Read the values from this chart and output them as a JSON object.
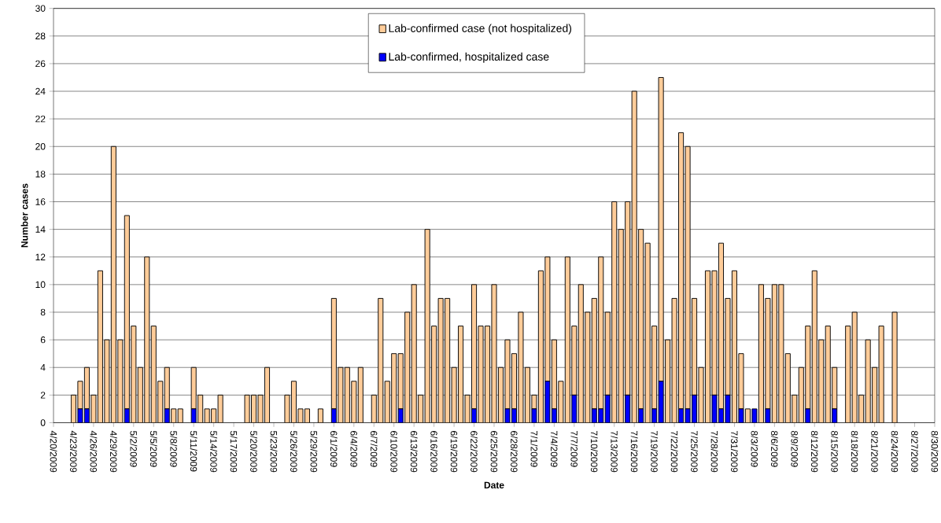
{
  "chart_data": {
    "type": "bar",
    "stacked": true,
    "xlabel": "Date",
    "ylabel": "Number cases",
    "x": [
      "2009-04-23",
      "2009-04-24",
      "2009-04-25",
      "2009-04-26",
      "2009-04-27",
      "2009-04-28",
      "2009-04-29",
      "2009-04-30",
      "2009-05-01",
      "2009-05-02",
      "2009-05-03",
      "2009-05-04",
      "2009-05-05",
      "2009-05-06",
      "2009-05-07",
      "2009-05-08",
      "2009-05-09",
      "2009-05-11",
      "2009-05-12",
      "2009-05-13",
      "2009-05-14",
      "2009-05-15",
      "2009-05-19",
      "2009-05-20",
      "2009-05-21",
      "2009-05-22",
      "2009-05-25",
      "2009-05-26",
      "2009-05-27",
      "2009-05-28",
      "2009-05-30",
      "2009-06-01",
      "2009-06-02",
      "2009-06-03",
      "2009-06-04",
      "2009-06-05",
      "2009-06-07",
      "2009-06-08",
      "2009-06-09",
      "2009-06-10",
      "2009-06-11",
      "2009-06-12",
      "2009-06-13",
      "2009-06-14",
      "2009-06-15",
      "2009-06-16",
      "2009-06-17",
      "2009-06-18",
      "2009-06-19",
      "2009-06-20",
      "2009-06-21",
      "2009-06-22",
      "2009-06-23",
      "2009-06-24",
      "2009-06-25",
      "2009-06-26",
      "2009-06-27",
      "2009-06-28",
      "2009-06-29",
      "2009-06-30",
      "2009-07-01",
      "2009-07-02",
      "2009-07-03",
      "2009-07-04",
      "2009-07-05",
      "2009-07-06",
      "2009-07-07",
      "2009-07-08",
      "2009-07-09",
      "2009-07-10",
      "2009-07-11",
      "2009-07-12",
      "2009-07-13",
      "2009-07-14",
      "2009-07-15",
      "2009-07-16",
      "2009-07-17",
      "2009-07-18",
      "2009-07-19",
      "2009-07-20",
      "2009-07-21",
      "2009-07-22",
      "2009-07-23",
      "2009-07-24",
      "2009-07-25",
      "2009-07-26",
      "2009-07-27",
      "2009-07-28",
      "2009-07-29",
      "2009-07-30",
      "2009-07-31",
      "2009-08-01",
      "2009-08-02",
      "2009-08-03",
      "2009-08-04",
      "2009-08-05",
      "2009-08-06",
      "2009-08-07",
      "2009-08-08",
      "2009-08-09",
      "2009-08-10",
      "2009-08-11",
      "2009-08-12",
      "2009-08-13",
      "2009-08-14",
      "2009-08-15",
      "2009-08-17",
      "2009-08-18",
      "2009-08-19",
      "2009-08-20",
      "2009-08-21",
      "2009-08-22",
      "2009-08-24"
    ],
    "series": [
      {
        "name": "Lab-confirmed, hospitalized case",
        "color": "#0000ff",
        "values": [
          0,
          1,
          1,
          0,
          0,
          0,
          0,
          0,
          1,
          0,
          0,
          0,
          0,
          0,
          1,
          0,
          0,
          1,
          0,
          0,
          0,
          0,
          0,
          0,
          0,
          0,
          0,
          0,
          0,
          0,
          0,
          1,
          0,
          0,
          0,
          0,
          0,
          0,
          0,
          0,
          1,
          0,
          0,
          0,
          0,
          0,
          0,
          0,
          0,
          0,
          0,
          1,
          0,
          0,
          0,
          0,
          1,
          1,
          0,
          0,
          1,
          0,
          3,
          1,
          0,
          0,
          2,
          0,
          0,
          1,
          1,
          2,
          0,
          0,
          2,
          0,
          1,
          0,
          1,
          3,
          0,
          0,
          1,
          1,
          2,
          0,
          0,
          2,
          1,
          2,
          0,
          1,
          0,
          1,
          0,
          1,
          0,
          0,
          0,
          0,
          0,
          1,
          0,
          0,
          0,
          1,
          0,
          0,
          0,
          0,
          0,
          0,
          0
        ]
      },
      {
        "name": "Lab-confirmed case (not hospitalized)",
        "color": "#ffcc99",
        "values": [
          2,
          2,
          3,
          2,
          11,
          6,
          20,
          6,
          14,
          7,
          4,
          12,
          7,
          3,
          3,
          1,
          1,
          3,
          2,
          1,
          1,
          2,
          2,
          2,
          2,
          4,
          2,
          3,
          1,
          1,
          1,
          8,
          4,
          4,
          3,
          4,
          2,
          9,
          3,
          5,
          4,
          8,
          10,
          2,
          14,
          7,
          9,
          9,
          4,
          7,
          2,
          9,
          7,
          7,
          10,
          4,
          5,
          4,
          8,
          4,
          1,
          11,
          9,
          5,
          3,
          12,
          5,
          10,
          8,
          8,
          11,
          6,
          16,
          14,
          14,
          24,
          13,
          13,
          6,
          22,
          6,
          9,
          20,
          19,
          7,
          4,
          11,
          9,
          12,
          7,
          11,
          4,
          1,
          0,
          10,
          8,
          10,
          10,
          5,
          2,
          4,
          6,
          11,
          6,
          7,
          3,
          7,
          8,
          2,
          6,
          4,
          7,
          8
        ]
      }
    ],
    "xlim": [
      "2009-04-20",
      "2009-08-30"
    ],
    "xticks": [
      {
        "value": "2009-04-20",
        "label": "4/20/2009"
      },
      {
        "value": "2009-04-23",
        "label": "4/23/2009"
      },
      {
        "value": "2009-04-26",
        "label": "4/26/2009"
      },
      {
        "value": "2009-04-29",
        "label": "4/29/2009"
      },
      {
        "value": "2009-05-02",
        "label": "5/2/2009"
      },
      {
        "value": "2009-05-05",
        "label": "5/5/2009"
      },
      {
        "value": "2009-05-08",
        "label": "5/8/2009"
      },
      {
        "value": "2009-05-11",
        "label": "5/11/2009"
      },
      {
        "value": "2009-05-14",
        "label": "5/14/2009"
      },
      {
        "value": "2009-05-17",
        "label": "5/17/2009"
      },
      {
        "value": "2009-05-20",
        "label": "5/20/2009"
      },
      {
        "value": "2009-05-23",
        "label": "5/23/2009"
      },
      {
        "value": "2009-05-26",
        "label": "5/26/2009"
      },
      {
        "value": "2009-05-29",
        "label": "5/29/2009"
      },
      {
        "value": "2009-06-01",
        "label": "6/1/2009"
      },
      {
        "value": "2009-06-04",
        "label": "6/4/2009"
      },
      {
        "value": "2009-06-07",
        "label": "6/7/2009"
      },
      {
        "value": "2009-06-10",
        "label": "6/10/2009"
      },
      {
        "value": "2009-06-13",
        "label": "6/13/2009"
      },
      {
        "value": "2009-06-16",
        "label": "6/16/2009"
      },
      {
        "value": "2009-06-19",
        "label": "6/19/2009"
      },
      {
        "value": "2009-06-22",
        "label": "6/22/2009"
      },
      {
        "value": "2009-06-25",
        "label": "6/25/2009"
      },
      {
        "value": "2009-06-28",
        "label": "6/28/2009"
      },
      {
        "value": "2009-07-01",
        "label": "7/1/2009"
      },
      {
        "value": "2009-07-04",
        "label": "7/4/2009"
      },
      {
        "value": "2009-07-07",
        "label": "7/7/2009"
      },
      {
        "value": "2009-07-10",
        "label": "7/10/2009"
      },
      {
        "value": "2009-07-13",
        "label": "7/13/2009"
      },
      {
        "value": "2009-07-16",
        "label": "7/16/2009"
      },
      {
        "value": "2009-07-19",
        "label": "7/19/2009"
      },
      {
        "value": "2009-07-22",
        "label": "7/22/2009"
      },
      {
        "value": "2009-07-25",
        "label": "7/25/2009"
      },
      {
        "value": "2009-07-28",
        "label": "7/28/2009"
      },
      {
        "value": "2009-07-31",
        "label": "7/31/2009"
      },
      {
        "value": "2009-08-03",
        "label": "8/3/2009"
      },
      {
        "value": "2009-08-06",
        "label": "8/6/2009"
      },
      {
        "value": "2009-08-09",
        "label": "8/9/2009"
      },
      {
        "value": "2009-08-12",
        "label": "8/12/2009"
      },
      {
        "value": "2009-08-15",
        "label": "8/15/2009"
      },
      {
        "value": "2009-08-18",
        "label": "8/18/2009"
      },
      {
        "value": "2009-08-21",
        "label": "8/21/2009"
      },
      {
        "value": "2009-08-24",
        "label": "8/24/2009"
      },
      {
        "value": "2009-08-27",
        "label": "8/27/2009"
      },
      {
        "value": "2009-08-30",
        "label": "8/30/2009"
      }
    ],
    "ylim": [
      0,
      30
    ],
    "yticks": [
      0,
      2,
      4,
      6,
      8,
      10,
      12,
      14,
      16,
      18,
      20,
      22,
      24,
      26,
      28,
      30
    ],
    "grid": "y",
    "legend": "top"
  }
}
